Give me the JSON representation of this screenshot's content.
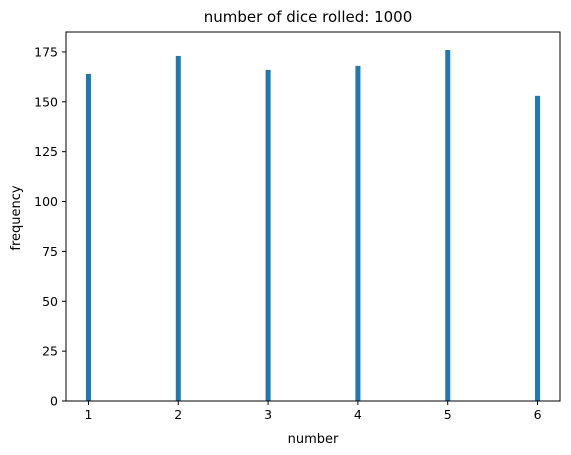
{
  "chart_data": {
    "type": "bar",
    "title": "number of dice rolled: 1000",
    "xlabel": "number",
    "ylabel": "frequency",
    "x": [
      1,
      2,
      3,
      4,
      5,
      6
    ],
    "values": [
      164,
      173,
      166,
      168,
      176,
      153
    ],
    "xlim": [
      0.75,
      6.25
    ],
    "ylim": [
      0,
      185
    ],
    "x_ticks": [
      1,
      2,
      3,
      4,
      5,
      6
    ],
    "y_ticks": [
      0,
      25,
      50,
      75,
      100,
      125,
      150,
      175
    ],
    "bar_color": "#1f77b4",
    "grid": false,
    "legend": "none"
  }
}
